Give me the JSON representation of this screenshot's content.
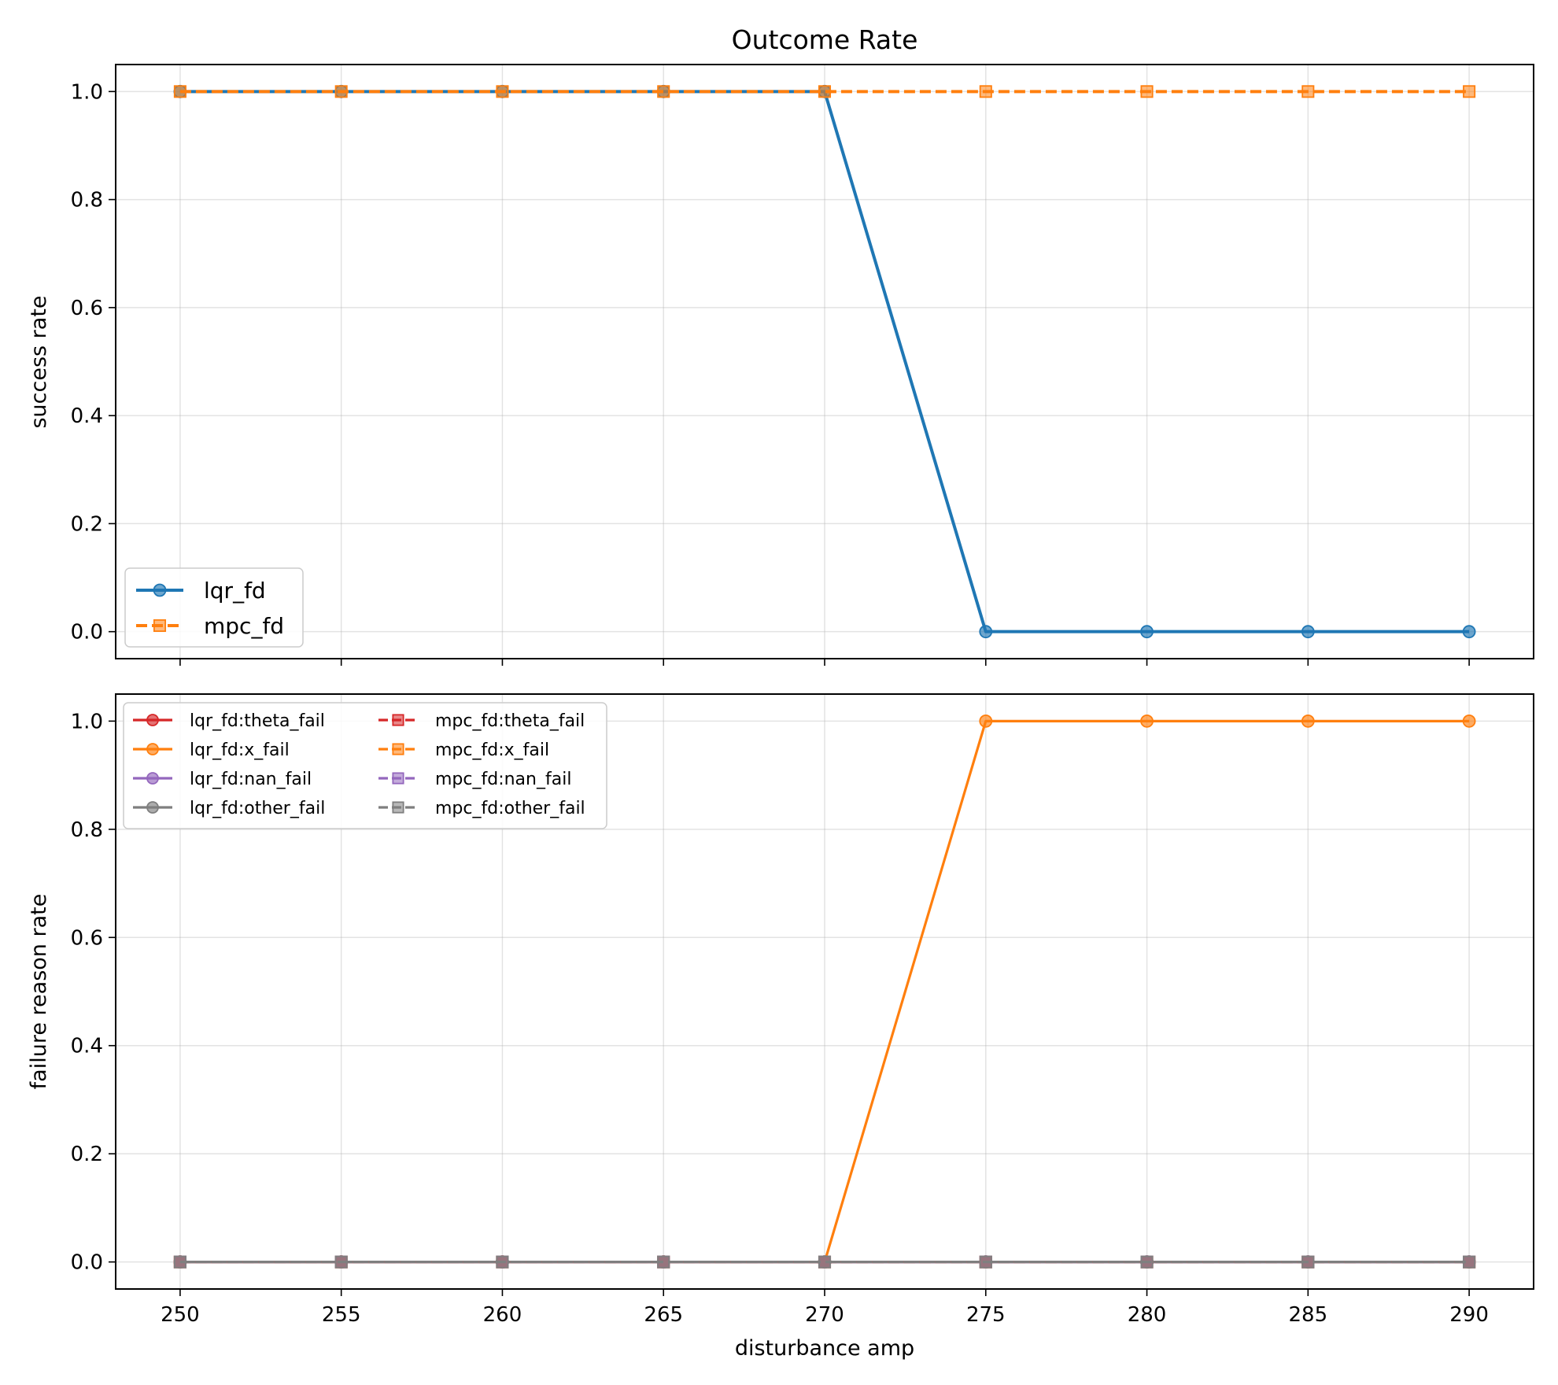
{
  "chart_data": [
    {
      "type": "line",
      "title": "Outcome Rate",
      "xlabel": "",
      "ylabel": "success rate",
      "x": [
        250,
        255,
        260,
        265,
        270,
        275,
        280,
        285,
        290
      ],
      "xlim": [
        248,
        292
      ],
      "ylim": [
        -0.05,
        1.05
      ],
      "yticks": [
        0.0,
        0.2,
        0.4,
        0.6,
        0.8,
        1.0
      ],
      "ytick_labels": [
        "0.0",
        "0.2",
        "0.4",
        "0.6",
        "0.8",
        "1.0"
      ],
      "grid": true,
      "legend_position": "lower-left",
      "series": [
        {
          "name": "lqr_fd",
          "color": "#1f77b4",
          "marker": "circle",
          "dash": "solid",
          "values": [
            1,
            1,
            1,
            1,
            1,
            0,
            0,
            0,
            0
          ]
        },
        {
          "name": "mpc_fd",
          "color": "#ff7f0e",
          "marker": "square",
          "dash": "dashed",
          "values": [
            1,
            1,
            1,
            1,
            1,
            1,
            1,
            1,
            1
          ]
        }
      ]
    },
    {
      "type": "line",
      "title": "",
      "xlabel": "disturbance amp",
      "ylabel": "failure reason rate",
      "x": [
        250,
        255,
        260,
        265,
        270,
        275,
        280,
        285,
        290
      ],
      "xticks": [
        250,
        255,
        260,
        265,
        270,
        275,
        280,
        285,
        290
      ],
      "xtick_labels": [
        "250",
        "255",
        "260",
        "265",
        "270",
        "275",
        "280",
        "285",
        "290"
      ],
      "xlim": [
        248,
        292
      ],
      "ylim": [
        -0.05,
        1.05
      ],
      "yticks": [
        0.0,
        0.2,
        0.4,
        0.6,
        0.8,
        1.0
      ],
      "ytick_labels": [
        "0.0",
        "0.2",
        "0.4",
        "0.6",
        "0.8",
        "1.0"
      ],
      "grid": true,
      "legend_position": "upper-left",
      "legend_columns": 2,
      "series": [
        {
          "name": "lqr_fd:theta_fail",
          "color": "#d62728",
          "marker": "circle",
          "dash": "solid",
          "values": [
            0,
            0,
            0,
            0,
            0,
            0,
            0,
            0,
            0
          ]
        },
        {
          "name": "lqr_fd:x_fail",
          "color": "#ff7f0e",
          "marker": "circle",
          "dash": "solid",
          "values": [
            0,
            0,
            0,
            0,
            0,
            1,
            1,
            1,
            1
          ]
        },
        {
          "name": "lqr_fd:nan_fail",
          "color": "#9467bd",
          "marker": "circle",
          "dash": "solid",
          "values": [
            0,
            0,
            0,
            0,
            0,
            0,
            0,
            0,
            0
          ]
        },
        {
          "name": "lqr_fd:other_fail",
          "color": "#7f7f7f",
          "marker": "circle",
          "dash": "solid",
          "values": [
            0,
            0,
            0,
            0,
            0,
            0,
            0,
            0,
            0
          ]
        },
        {
          "name": "mpc_fd:theta_fail",
          "color": "#d62728",
          "marker": "square",
          "dash": "dashed",
          "values": [
            0,
            0,
            0,
            0,
            0,
            0,
            0,
            0,
            0
          ]
        },
        {
          "name": "mpc_fd:x_fail",
          "color": "#ff7f0e",
          "marker": "square",
          "dash": "dashed",
          "values": [
            0,
            0,
            0,
            0,
            0,
            0,
            0,
            0,
            0
          ]
        },
        {
          "name": "mpc_fd:nan_fail",
          "color": "#9467bd",
          "marker": "square",
          "dash": "dashed",
          "values": [
            0,
            0,
            0,
            0,
            0,
            0,
            0,
            0,
            0
          ]
        },
        {
          "name": "mpc_fd:other_fail",
          "color": "#7f7f7f",
          "marker": "square",
          "dash": "dashed",
          "values": [
            0,
            0,
            0,
            0,
            0,
            0,
            0,
            0,
            0
          ]
        }
      ]
    }
  ]
}
